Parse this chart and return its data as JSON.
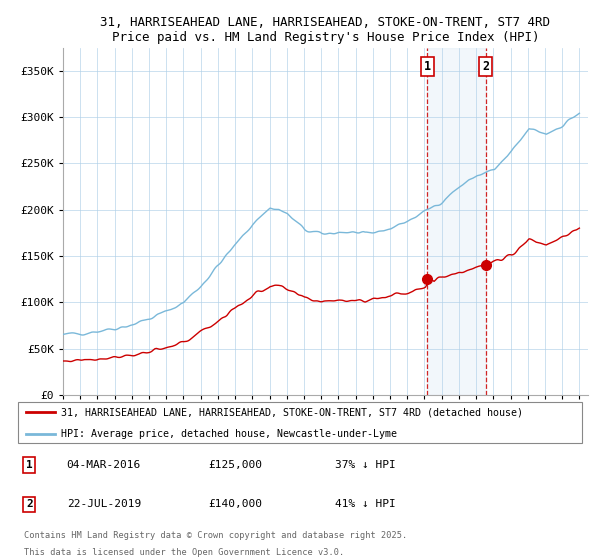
{
  "title": "31, HARRISEAHEAD LANE, HARRISEAHEAD, STOKE-ON-TRENT, ST7 4RD",
  "subtitle": "Price paid vs. HM Land Registry's House Price Index (HPI)",
  "legend1": "31, HARRISEAHEAD LANE, HARRISEAHEAD, STOKE-ON-TRENT, ST7 4RD (detached house)",
  "legend2": "HPI: Average price, detached house, Newcastle-under-Lyme",
  "sale1_date": "04-MAR-2016",
  "sale1_price": "£125,000",
  "sale1_pct": "37% ↓ HPI",
  "sale2_date": "22-JUL-2019",
  "sale2_price": "£140,000",
  "sale2_pct": "41% ↓ HPI",
  "footer1": "Contains HM Land Registry data © Crown copyright and database right 2025.",
  "footer2": "This data is licensed under the Open Government Licence v3.0.",
  "hpi_color": "#7ab8d9",
  "property_color": "#cc0000",
  "sale1_x": 2016.17,
  "sale2_x": 2019.55,
  "bg_shade": "#cce0f0",
  "vline_color": "#cc0000",
  "ylim_max": 375000,
  "sale1_val": 125000,
  "sale2_val": 140000
}
